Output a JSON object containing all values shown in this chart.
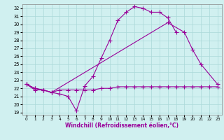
{
  "xlabel": "Windchill (Refroidissement éolien,°C)",
  "line1_x": [
    0,
    1,
    2,
    3,
    4,
    5,
    6,
    7,
    8,
    9,
    10,
    11,
    12,
    13,
    14,
    15,
    16,
    17,
    18
  ],
  "line1_y": [
    22.5,
    22.0,
    21.8,
    21.5,
    21.3,
    21.0,
    19.2,
    22.3,
    23.5,
    25.8,
    28.0,
    30.5,
    31.5,
    32.2,
    32.0,
    31.5,
    31.5,
    30.8,
    29.0
  ],
  "line2_x": [
    0,
    1,
    2,
    3,
    17,
    19,
    20,
    21,
    23
  ],
  "line2_y": [
    22.5,
    22.0,
    21.8,
    21.5,
    30.2,
    29.0,
    26.8,
    25.0,
    22.5
  ],
  "line3_x": [
    0,
    1,
    2,
    3,
    4,
    5,
    6,
    7,
    8,
    9,
    10,
    11,
    12,
    13,
    14,
    15,
    16,
    17,
    18,
    19,
    20,
    21,
    22,
    23
  ],
  "line3_y": [
    22.5,
    21.8,
    21.8,
    21.5,
    21.8,
    21.8,
    21.8,
    21.8,
    21.8,
    22.0,
    22.0,
    22.2,
    22.2,
    22.2,
    22.2,
    22.2,
    22.2,
    22.2,
    22.2,
    22.2,
    22.2,
    22.2,
    22.2,
    22.2
  ],
  "line_color": "#990099",
  "bg_color": "#d0f0f0",
  "grid_color": "#aad8d8",
  "xlim": [
    -0.5,
    23.5
  ],
  "ylim": [
    19,
    32.5
  ],
  "yticks": [
    19,
    20,
    21,
    22,
    23,
    24,
    25,
    26,
    27,
    28,
    29,
    30,
    31,
    32
  ],
  "xticks": [
    0,
    1,
    2,
    3,
    4,
    5,
    6,
    7,
    8,
    9,
    10,
    11,
    12,
    13,
    14,
    15,
    16,
    17,
    18,
    19,
    20,
    21,
    22,
    23
  ]
}
